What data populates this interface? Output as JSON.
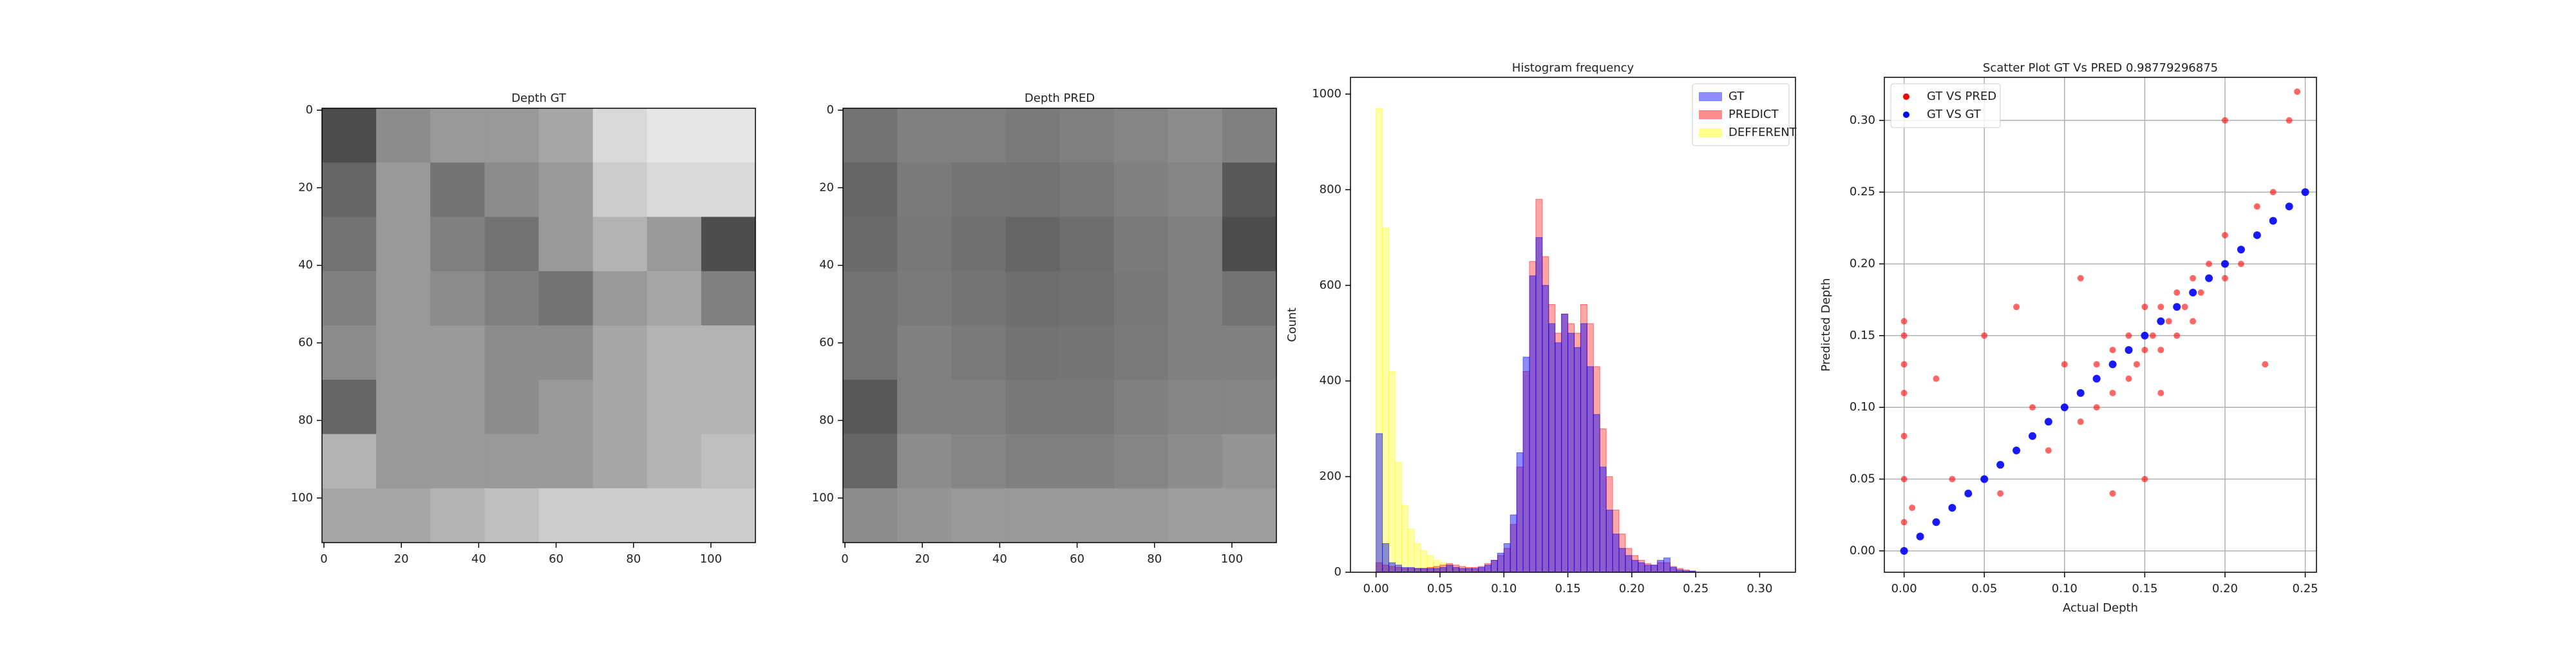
{
  "chart_data": [
    {
      "type": "image",
      "title": "Depth GT",
      "xlim": [
        -0.5,
        111.5
      ],
      "ylim": [
        111.5,
        -0.5
      ],
      "xticks": [
        0,
        20,
        40,
        60,
        80,
        100
      ],
      "yticks": [
        0,
        20,
        40,
        60,
        80,
        100
      ],
      "values": [
        [
          0.3,
          0.55,
          0.6,
          0.6,
          0.65,
          0.85,
          0.9,
          0.9
        ],
        [
          0.4,
          0.6,
          0.45,
          0.55,
          0.6,
          0.8,
          0.85,
          0.85
        ],
        [
          0.45,
          0.6,
          0.5,
          0.45,
          0.6,
          0.7,
          0.6,
          0.3
        ],
        [
          0.5,
          0.6,
          0.55,
          0.5,
          0.45,
          0.6,
          0.65,
          0.5
        ],
        [
          0.55,
          0.6,
          0.6,
          0.55,
          0.55,
          0.65,
          0.7,
          0.7
        ],
        [
          0.4,
          0.6,
          0.6,
          0.55,
          0.6,
          0.65,
          0.7,
          0.7
        ],
        [
          0.7,
          0.6,
          0.6,
          0.6,
          0.6,
          0.65,
          0.7,
          0.75
        ],
        [
          0.65,
          0.65,
          0.7,
          0.75,
          0.8,
          0.8,
          0.8,
          0.8
        ]
      ]
    },
    {
      "type": "image",
      "title": "Depth PRED",
      "xlim": [
        -0.5,
        111.5
      ],
      "ylim": [
        111.5,
        -0.5
      ],
      "xticks": [
        0,
        20,
        40,
        60,
        80,
        100
      ],
      "yticks": [
        0,
        20,
        40,
        60,
        80,
        100
      ],
      "values": [
        [
          0.45,
          0.5,
          0.5,
          0.48,
          0.5,
          0.52,
          0.55,
          0.5
        ],
        [
          0.4,
          0.48,
          0.46,
          0.45,
          0.47,
          0.5,
          0.52,
          0.35
        ],
        [
          0.42,
          0.47,
          0.44,
          0.4,
          0.43,
          0.48,
          0.5,
          0.3
        ],
        [
          0.45,
          0.48,
          0.46,
          0.43,
          0.44,
          0.47,
          0.5,
          0.45
        ],
        [
          0.45,
          0.5,
          0.48,
          0.45,
          0.46,
          0.48,
          0.5,
          0.5
        ],
        [
          0.35,
          0.5,
          0.5,
          0.47,
          0.47,
          0.5,
          0.52,
          0.52
        ],
        [
          0.4,
          0.55,
          0.52,
          0.5,
          0.5,
          0.52,
          0.55,
          0.58
        ],
        [
          0.55,
          0.58,
          0.6,
          0.6,
          0.6,
          0.6,
          0.62,
          0.62
        ]
      ]
    },
    {
      "type": "histogram",
      "title": "Histogram frequency",
      "ylabel": "Count",
      "legend": "upper right",
      "xlim": [
        -0.02,
        0.328
      ],
      "ylim": [
        0,
        1035
      ],
      "xticks": [
        {
          "value": 0,
          "label": "0.00"
        },
        {
          "value": 0.05,
          "label": "0.05"
        },
        {
          "value": 0.1,
          "label": "0.10"
        },
        {
          "value": 0.15,
          "label": "0.15"
        },
        {
          "value": 0.2,
          "label": "0.20"
        },
        {
          "value": 0.25,
          "label": "0.25"
        },
        {
          "value": 0.3,
          "label": "0.30"
        }
      ],
      "yticks": [
        0,
        200,
        400,
        600,
        800,
        1000
      ],
      "bins": [
        0,
        0.005,
        0.01,
        0.015,
        0.02,
        0.025,
        0.03,
        0.035,
        0.04,
        0.045,
        0.05,
        0.055,
        0.06,
        0.065,
        0.07,
        0.075,
        0.08,
        0.085,
        0.09,
        0.095,
        0.1,
        0.105,
        0.11,
        0.115,
        0.12,
        0.125,
        0.13,
        0.135,
        0.14,
        0.145,
        0.15,
        0.155,
        0.16,
        0.165,
        0.17,
        0.175,
        0.18,
        0.185,
        0.19,
        0.195,
        0.2,
        0.205,
        0.21,
        0.215,
        0.22,
        0.225,
        0.23,
        0.235,
        0.24,
        0.245,
        0.25
      ],
      "series": [
        {
          "name": "GT",
          "color": "#0000ff",
          "values": [
            290,
            60,
            20,
            15,
            10,
            10,
            8,
            8,
            8,
            8,
            10,
            15,
            10,
            8,
            8,
            8,
            10,
            15,
            25,
            40,
            60,
            120,
            250,
            450,
            620,
            700,
            600,
            520,
            480,
            540,
            500,
            470,
            520,
            430,
            330,
            220,
            130,
            80,
            50,
            35,
            25,
            20,
            15,
            15,
            25,
            30,
            10,
            5,
            3,
            2
          ]
        },
        {
          "name": "PREDICT",
          "color": "#ff0000",
          "values": [
            20,
            15,
            12,
            10,
            8,
            8,
            8,
            8,
            10,
            12,
            15,
            18,
            15,
            12,
            10,
            10,
            12,
            18,
            25,
            35,
            50,
            100,
            220,
            420,
            650,
            780,
            660,
            560,
            500,
            540,
            520,
            500,
            560,
            520,
            430,
            300,
            200,
            130,
            80,
            50,
            35,
            25,
            18,
            15,
            20,
            20,
            12,
            8,
            5,
            3
          ]
        },
        {
          "name": "DEFFERENT",
          "color": "#ffff00",
          "values": [
            970,
            720,
            420,
            230,
            140,
            90,
            60,
            45,
            35,
            25,
            20,
            15,
            10,
            8,
            6,
            5,
            3,
            2,
            1,
            1,
            0,
            0,
            0,
            0,
            0,
            0,
            0,
            0,
            0,
            0,
            0,
            0,
            0,
            0,
            0,
            0,
            0,
            0,
            0,
            0,
            0,
            0,
            0,
            0,
            0,
            0,
            0,
            0,
            0,
            0
          ]
        }
      ]
    },
    {
      "type": "scatter",
      "title": "Scatter Plot GT Vs PRED 0.98779296875",
      "xlabel": "Actual Depth",
      "ylabel": "Predicted Depth",
      "legend": "upper left",
      "grid": true,
      "xlim": [
        -0.0123,
        0.257
      ],
      "ylim": [
        -0.0149,
        0.33
      ],
      "xticks": [
        {
          "value": 0,
          "label": "0.00"
        },
        {
          "value": 0.05,
          "label": "0.05"
        },
        {
          "value": 0.1,
          "label": "0.10"
        },
        {
          "value": 0.15,
          "label": "0.15"
        },
        {
          "value": 0.2,
          "label": "0.20"
        },
        {
          "value": 0.25,
          "label": "0.25"
        }
      ],
      "yticks": [
        {
          "value": 0,
          "label": "0.00"
        },
        {
          "value": 0.05,
          "label": "0.05"
        },
        {
          "value": 0.1,
          "label": "0.10"
        },
        {
          "value": 0.15,
          "label": "0.15"
        },
        {
          "value": 0.2,
          "label": "0.20"
        },
        {
          "value": 0.25,
          "label": "0.25"
        },
        {
          "value": 0.3,
          "label": "0.30"
        }
      ],
      "series": [
        {
          "name": "GT VS PRED",
          "color": "#ff0000",
          "x": [
            0,
            0,
            0,
            0,
            0,
            0,
            0,
            0.005,
            0.02,
            0.03,
            0.05,
            0.06,
            0.08,
            0.09,
            0.1,
            0.11,
            0.12,
            0.12,
            0.13,
            0.13,
            0.14,
            0.14,
            0.145,
            0.15,
            0.15,
            0.155,
            0.16,
            0.16,
            0.165,
            0.17,
            0.17,
            0.175,
            0.18,
            0.18,
            0.185,
            0.19,
            0.2,
            0.2,
            0.21,
            0.22,
            0.23,
            0.24,
            0.245,
            0.2,
            0.15,
            0.11,
            0.16,
            0.13,
            0.07,
            0.225
          ],
          "y": [
            0.02,
            0.05,
            0.08,
            0.11,
            0.13,
            0.15,
            0.16,
            0.03,
            0.12,
            0.05,
            0.15,
            0.04,
            0.1,
            0.07,
            0.13,
            0.09,
            0.1,
            0.13,
            0.11,
            0.14,
            0.12,
            0.15,
            0.13,
            0.14,
            0.17,
            0.15,
            0.14,
            0.17,
            0.16,
            0.15,
            0.18,
            0.17,
            0.16,
            0.19,
            0.18,
            0.2,
            0.19,
            0.22,
            0.2,
            0.24,
            0.25,
            0.3,
            0.32,
            0.3,
            0.05,
            0.19,
            0.11,
            0.04,
            0.17,
            0.13
          ]
        },
        {
          "name": "GT VS GT",
          "color": "#0000ff",
          "x": [
            0,
            0.01,
            0.02,
            0.03,
            0.04,
            0.05,
            0.06,
            0.07,
            0.08,
            0.09,
            0.1,
            0.11,
            0.12,
            0.13,
            0.14,
            0.15,
            0.16,
            0.17,
            0.18,
            0.19,
            0.2,
            0.21,
            0.22,
            0.23,
            0.24,
            0.25
          ],
          "y": [
            0,
            0.01,
            0.02,
            0.03,
            0.04,
            0.05,
            0.06,
            0.07,
            0.08,
            0.09,
            0.1,
            0.11,
            0.12,
            0.13,
            0.14,
            0.15,
            0.16,
            0.17,
            0.18,
            0.19,
            0.2,
            0.21,
            0.22,
            0.23,
            0.24,
            0.25
          ]
        }
      ]
    }
  ]
}
